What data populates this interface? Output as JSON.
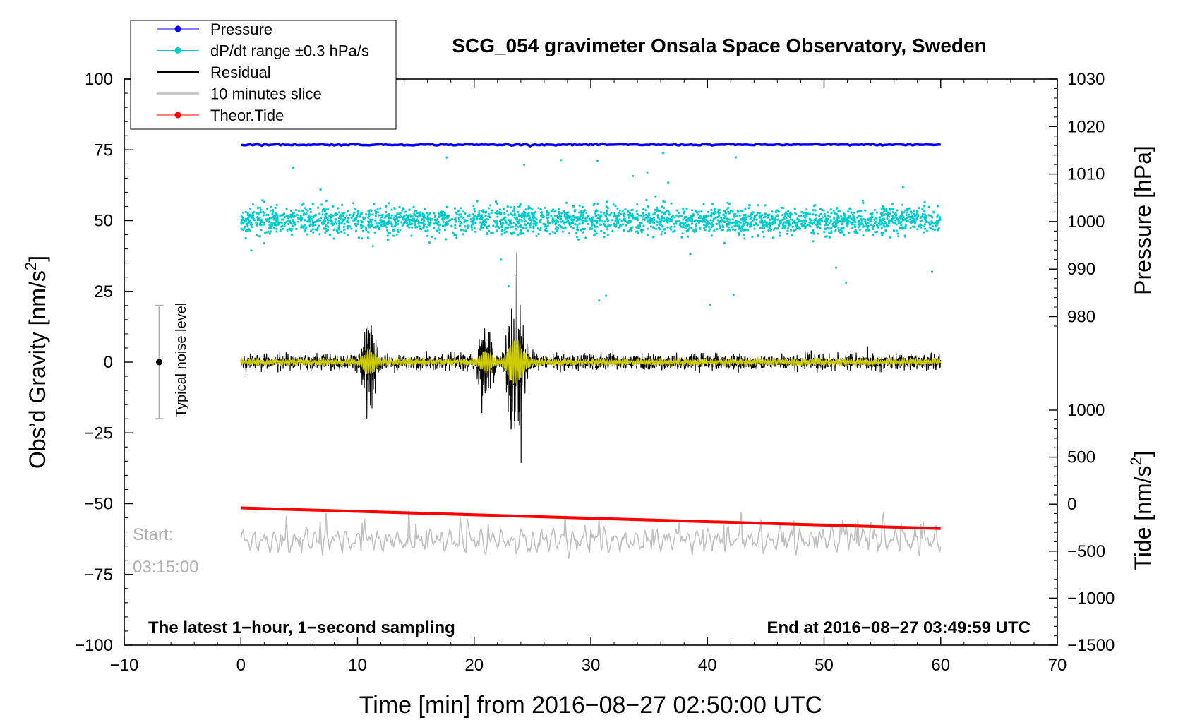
{
  "chart_data": {
    "type": "line",
    "title": "SCG_054 gravimeter Onsala Space Observatory, Sweden",
    "xlabel": "Time [min] from 2016−08−27 02:50:00 UTC",
    "ylabel": "Obs’d Gravity [nm/s",
    "ylabel_sup": "2",
    "ylabel_end": "]",
    "right_label_pressure": "Pressure [hPa]",
    "right_label_tide": "Tide [nm/s",
    "right_label_tide_sup": "2",
    "right_label_tide_end": "]",
    "xlim": [
      -10,
      70
    ],
    "ylim": [
      -100,
      100
    ],
    "x_ticks": [
      "−10",
      "0",
      "10",
      "20",
      "30",
      "40",
      "50",
      "60",
      "70"
    ],
    "x_tick_values": [
      -10,
      0,
      10,
      20,
      30,
      40,
      50,
      60,
      70
    ],
    "y_ticks": [
      "100",
      "75",
      "50",
      "25",
      "0",
      "−25",
      "−50",
      "−75",
      "−100"
    ],
    "y_tick_values": [
      100,
      75,
      50,
      25,
      0,
      -25,
      -50,
      -75,
      -100
    ],
    "pressure_axis": {
      "ticks": [
        "1030",
        "1020",
        "1010",
        "1000",
        "990",
        "980"
      ],
      "tick_values": [
        1030,
        1020,
        1010,
        1000,
        990,
        980
      ],
      "range": [
        960,
        1030
      ]
    },
    "tide_axis": {
      "ticks": [
        "1000",
        "500",
        "0",
        "−500",
        "−1000",
        "−1500"
      ],
      "tick_values": [
        1000,
        500,
        0,
        -500,
        -1000,
        -1500
      ],
      "range": [
        -1500,
        1500
      ]
    },
    "legend": [
      {
        "label": "Pressure",
        "color": "#0000ff",
        "marker": "dot"
      },
      {
        "label": "dP/dt range ±0.3 hPa/s",
        "color": "#00cccc",
        "marker": "dot"
      },
      {
        "label": "Residual",
        "color": "#000000",
        "marker": "line"
      },
      {
        "label": "10 minutes slice",
        "color": "#c0c0c0",
        "marker": "line"
      },
      {
        "label": "Theor.Tide",
        "color": "#ff0000",
        "marker": "dot"
      }
    ],
    "series": [
      {
        "name": "Pressure",
        "color": "#0000ff",
        "x": [
          0,
          60
        ],
        "values": [
          76.8,
          76.8
        ]
      },
      {
        "name": "dP/dt",
        "color": "#00cccc",
        "center": 50,
        "spread": 3,
        "x_range": [
          0,
          60
        ]
      },
      {
        "name": "Residual",
        "color": "#000000",
        "center": 0,
        "x_range": [
          0,
          60
        ],
        "events": [
          {
            "t": 11,
            "amp": 13
          },
          {
            "t": 21,
            "amp": 11
          },
          {
            "t": 23.3,
            "amp": 21
          },
          {
            "t": 24,
            "amp": 13
          }
        ]
      },
      {
        "name": "Residual (filtered)",
        "color": "#cccc00",
        "center": 0,
        "x_range": [
          0,
          60
        ]
      },
      {
        "name": "Theor.Tide",
        "color": "#ff0000",
        "x": [
          0,
          60
        ],
        "values": [
          -51.5,
          -58.8
        ]
      },
      {
        "name": "10 minutes slice",
        "color": "#c0c0c0",
        "center": -63,
        "x_range": [
          0,
          60
        ]
      }
    ],
    "noise_bar": {
      "x": -7,
      "center": 0,
      "low": -20,
      "high": 20,
      "label": "Typical noise level"
    },
    "annotations": {
      "bottom_left": "The latest 1−hour, 1−second sampling",
      "bottom_right": "End at 2016−08−27 03:49:59 UTC",
      "start_label": "Start:",
      "start_time": "03:15:00"
    }
  }
}
